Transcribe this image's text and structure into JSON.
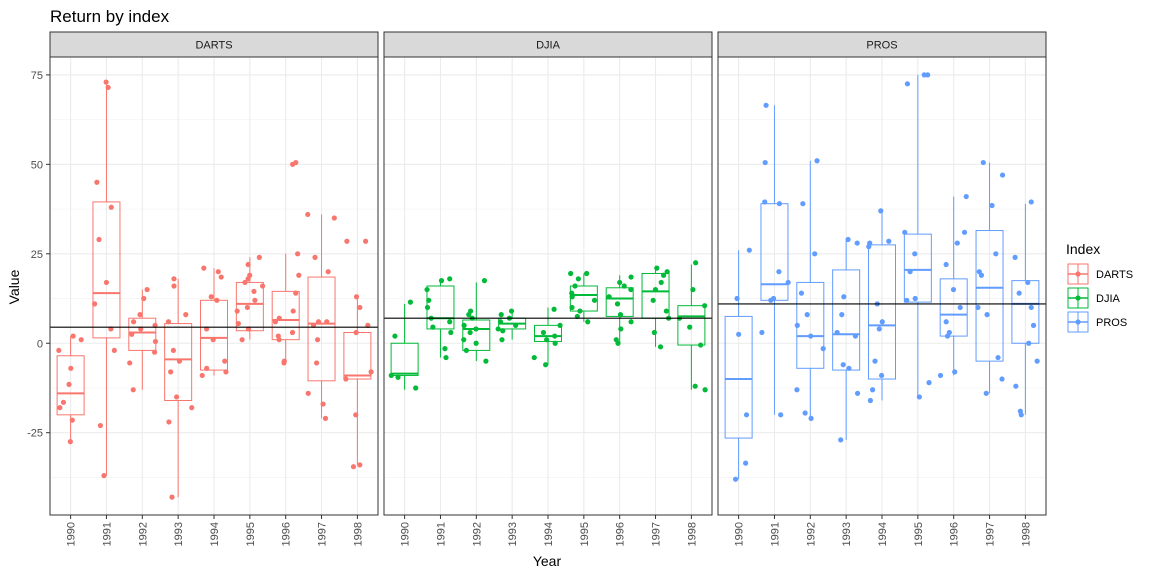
{
  "chart_data": {
    "type": "boxplot",
    "title": "Return by index",
    "xlabel": "Year",
    "ylabel": "Value",
    "ylim": [
      -48,
      80
    ],
    "yticks": [
      -25,
      0,
      25,
      50,
      75
    ],
    "categories": [
      "1990",
      "1991",
      "1992",
      "1993",
      "1994",
      "1995",
      "1996",
      "1997",
      "1998"
    ],
    "grid": true,
    "legend": {
      "title": "Index",
      "position": "right"
    },
    "panels": [
      {
        "name": "DARTS",
        "color": "#F8766D",
        "hline": 4.5,
        "boxes": [
          {
            "q1": -20,
            "median": -14,
            "q3": -3.5,
            "lo": -27.5,
            "hi": 2
          },
          {
            "q1": 1.5,
            "median": 14,
            "q3": 39.5,
            "lo": -37,
            "hi": 73
          },
          {
            "q1": -2,
            "median": 3,
            "q3": 7,
            "lo": -13,
            "hi": 15
          },
          {
            "q1": -16,
            "median": -4.5,
            "q3": 5.5,
            "lo": -43,
            "hi": 18
          },
          {
            "q1": -7.5,
            "median": 1.5,
            "q3": 12,
            "lo": -9,
            "hi": 21
          },
          {
            "q1": 3.5,
            "median": 11,
            "q3": 17,
            "lo": 1,
            "hi": 24
          },
          {
            "q1": 1,
            "median": 6.5,
            "q3": 14.5,
            "lo": -5,
            "hi": 25
          },
          {
            "q1": -10.5,
            "median": 5.5,
            "q3": 18.5,
            "lo": -21,
            "hi": 36
          },
          {
            "q1": -10,
            "median": -9,
            "q3": 3,
            "lo": -34,
            "hi": 13
          }
        ],
        "points": [
          [
            -27.5,
            -21.5,
            -18,
            -16.5,
            -11.5,
            -7,
            -2,
            1,
            2
          ],
          [
            -37,
            -23,
            -2,
            4,
            11,
            17,
            29,
            38,
            45,
            71.5,
            73
          ],
          [
            -13,
            -5.5,
            -2.5,
            0.5,
            2.5,
            4,
            5,
            6,
            8,
            12.5,
            15
          ],
          [
            -43,
            -22,
            -18,
            -15,
            -8,
            -5,
            -2,
            6,
            8,
            16,
            18
          ],
          [
            -9,
            -8,
            -7,
            -5,
            1,
            4,
            12,
            13,
            18.5,
            20,
            21
          ],
          [
            1,
            4,
            5.5,
            9,
            10,
            12,
            14.5,
            16,
            17,
            18,
            19,
            22,
            24
          ],
          [
            -5,
            -5.5,
            1,
            2,
            3,
            6,
            7,
            9,
            14,
            19,
            25,
            50.5,
            50
          ],
          [
            -21,
            -17,
            -14,
            -5.5,
            1,
            5,
            6,
            6,
            20,
            24,
            35,
            36
          ],
          [
            -34.5,
            -34,
            -20,
            -10,
            -8,
            3,
            5,
            10,
            13,
            28.5,
            28.5
          ]
        ]
      },
      {
        "name": "DJIA",
        "color": "#00BA38",
        "hline": 7,
        "boxes": [
          {
            "q1": -9,
            "median": -8.5,
            "q3": 0,
            "lo": -13,
            "hi": 11
          },
          {
            "q1": 4,
            "median": 7,
            "q3": 16,
            "lo": -4,
            "hi": 18
          },
          {
            "q1": -2,
            "median": 4,
            "q3": 6.5,
            "lo": -5,
            "hi": 17
          },
          {
            "q1": 4,
            "median": 5.5,
            "q3": 7,
            "lo": 1,
            "hi": 8.5
          },
          {
            "q1": 0.5,
            "median": 2,
            "q3": 5,
            "lo": -6,
            "hi": 10
          },
          {
            "q1": 9,
            "median": 13.5,
            "q3": 16,
            "lo": 6,
            "hi": 19.5
          },
          {
            "q1": 7.5,
            "median": 12.5,
            "q3": 15.5,
            "lo": 0,
            "hi": 19
          },
          {
            "q1": 7,
            "median": 14.5,
            "q3": 19.5,
            "lo": -1,
            "hi": 21
          },
          {
            "q1": -0.5,
            "median": 7.5,
            "q3": 10.5,
            "lo": -13,
            "hi": 22
          }
        ],
        "points": [
          [
            -12.5,
            -9.5,
            -9,
            2,
            11.5
          ],
          [
            -4,
            -1.5,
            3,
            4.5,
            6,
            7,
            10,
            12,
            15,
            17.5,
            18
          ],
          [
            -5,
            -2,
            0,
            1,
            3,
            4,
            5,
            7,
            8,
            9,
            17.5
          ],
          [
            1,
            3.5,
            4,
            5,
            6,
            7,
            8,
            9
          ],
          [
            -6,
            -4,
            0,
            1,
            2,
            3,
            5,
            9.5
          ],
          [
            6,
            7.5,
            9,
            10,
            12,
            13,
            14,
            16,
            18,
            19.5,
            19.5
          ],
          [
            0,
            1,
            4,
            6,
            8,
            11,
            13,
            15,
            16,
            17,
            18.5
          ],
          [
            -1,
            3,
            7,
            9,
            12,
            15,
            17,
            19,
            20,
            21
          ],
          [
            -13,
            -12,
            -0.5,
            4.5,
            7,
            10.5,
            15,
            22.5
          ]
        ]
      },
      {
        "name": "PROS",
        "color": "#619CFF",
        "hline": 11,
        "boxes": [
          {
            "q1": -26.5,
            "median": -10,
            "q3": 7.5,
            "lo": -38,
            "hi": 26
          },
          {
            "q1": 12,
            "median": 16.5,
            "q3": 39,
            "lo": -20,
            "hi": 66.5
          },
          {
            "q1": -7,
            "median": 2,
            "q3": 17,
            "lo": -21,
            "hi": 51
          },
          {
            "q1": -7.5,
            "median": 2.5,
            "q3": 20.5,
            "lo": -27,
            "hi": 29
          },
          {
            "q1": -10,
            "median": 5,
            "q3": 27.5,
            "lo": -16,
            "hi": 37
          },
          {
            "q1": 11.5,
            "median": 20.5,
            "q3": 30.5,
            "lo": -15,
            "hi": 75
          },
          {
            "q1": 2,
            "median": 8,
            "q3": 18,
            "lo": -9,
            "hi": 41
          },
          {
            "q1": -5,
            "median": 15.5,
            "q3": 31.5,
            "lo": -14,
            "hi": 50.5
          },
          {
            "q1": 0,
            "median": 11,
            "q3": 17.5,
            "lo": -20,
            "hi": 39
          }
        ],
        "points": [
          [
            -38,
            -33.5,
            -20,
            2.5,
            12.5,
            26
          ],
          [
            -20,
            3,
            12,
            12.5,
            17,
            20,
            39.5,
            39,
            50.5,
            66.5
          ],
          [
            -21,
            -19.5,
            -13,
            -1.5,
            2,
            5,
            8,
            14,
            25,
            39,
            51
          ],
          [
            -27,
            -14,
            -7,
            -6,
            2,
            3,
            8,
            13,
            28,
            29
          ],
          [
            -16,
            -13,
            -9,
            -5,
            4,
            6,
            11,
            27,
            28,
            28.5,
            37
          ],
          [
            -15,
            -11,
            12,
            12.5,
            20,
            25,
            31,
            72.5,
            75,
            75
          ],
          [
            -9,
            -8,
            2,
            3,
            6,
            10,
            15,
            22,
            28,
            31,
            41
          ],
          [
            -14,
            -10,
            -4,
            8,
            10,
            19,
            20,
            25,
            38.5,
            47,
            50.5
          ],
          [
            -20,
            -19,
            -12,
            -5,
            0,
            5,
            10,
            14,
            17,
            24,
            39.5
          ]
        ]
      }
    ]
  }
}
